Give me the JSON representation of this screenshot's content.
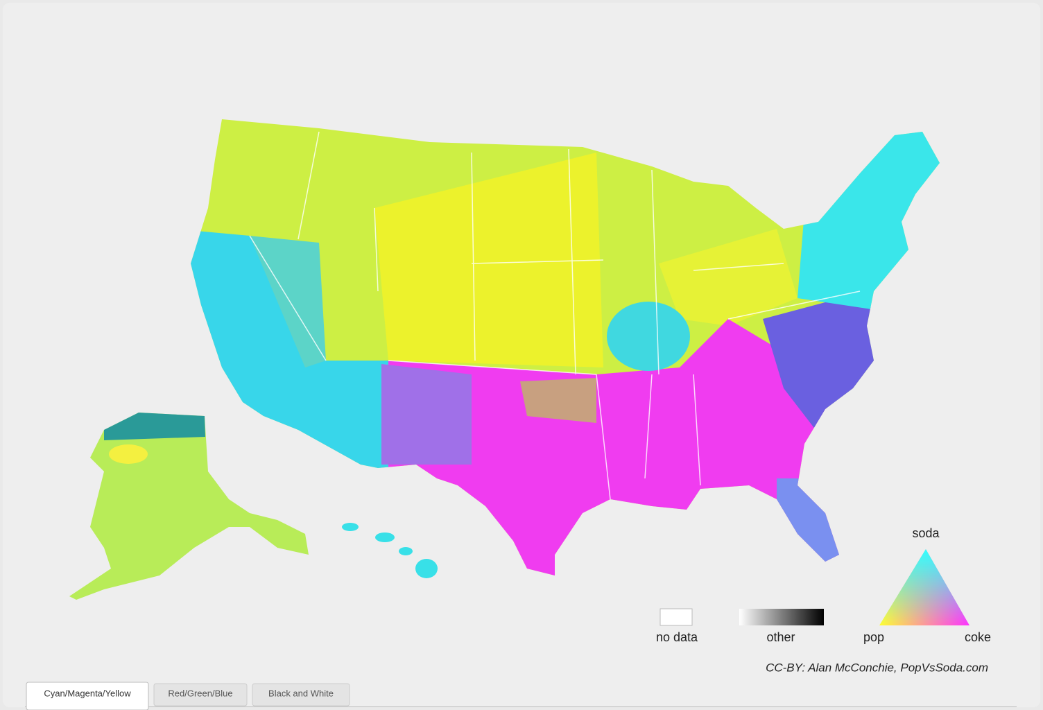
{
  "legend": {
    "no_data": "no data",
    "other": "other",
    "triangle": {
      "top": "soda",
      "left": "pop",
      "right": "coke"
    }
  },
  "credit": "CC-BY: Alan McConchie, PopVsSoda.com",
  "tabs": [
    "Cyan/Magenta/Yellow",
    "Red/Green/Blue",
    "Black and White"
  ]
}
